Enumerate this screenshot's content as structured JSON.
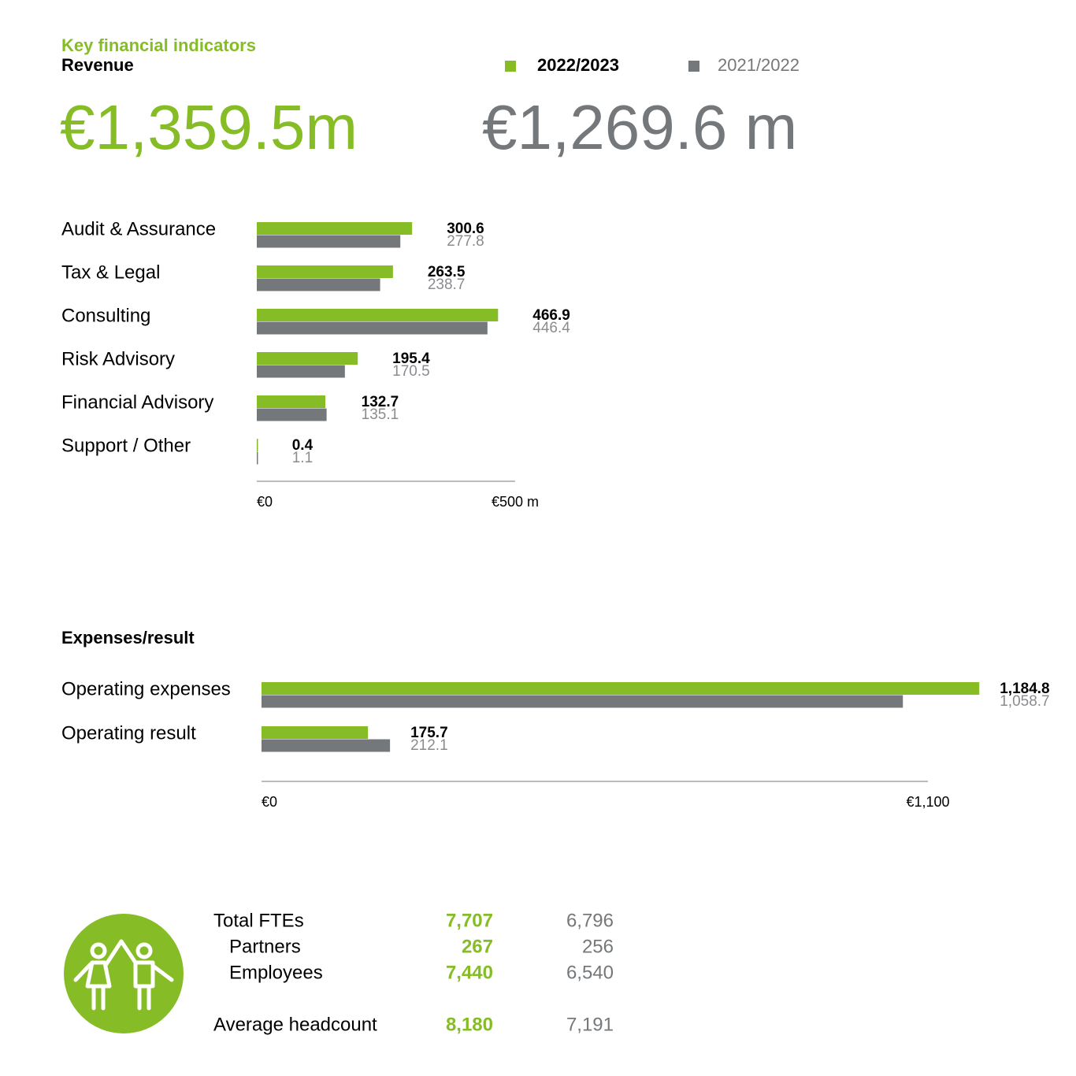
{
  "header": {
    "kicker": "Key financial indicators",
    "totals": [
      "€1,359.5m",
      "€1,269.6 m"
    ]
  },
  "chart_data": [
    {
      "type": "bar",
      "orientation": "horizontal",
      "title": "Revenue",
      "categories": [
        "Audit & Assurance",
        "Tax & Legal",
        "Consulting",
        "Risk Advisory",
        "Financial Advisory",
        "Support / Other"
      ],
      "series": [
        {
          "name": "2022/2023",
          "color": "#86bc25",
          "values": [
            300.6,
            263.5,
            466.9,
            195.4,
            132.7,
            0.4
          ]
        },
        {
          "name": "2021/2022",
          "color": "#75787b",
          "values": [
            277.8,
            238.7,
            446.4,
            170.5,
            135.1,
            1.1
          ]
        }
      ],
      "xlim": [
        0,
        500
      ],
      "xticks": [
        {
          "value": 0,
          "label": "€0"
        },
        {
          "value": 500,
          "label": "€500 m"
        }
      ]
    },
    {
      "type": "bar",
      "orientation": "horizontal",
      "title": "Expenses/result",
      "categories": [
        "Operating expenses",
        "Operating result"
      ],
      "series": [
        {
          "name": "2022/2023",
          "color": "#86bc25",
          "values": [
            1184.8,
            175.7
          ],
          "value_labels": [
            "1,184.8",
            "175.7"
          ]
        },
        {
          "name": "2021/2022",
          "color": "#75787b",
          "values": [
            1058.7,
            212.1
          ],
          "value_labels": [
            "1,058.7",
            "212.1"
          ]
        }
      ],
      "xlim": [
        0,
        1100
      ],
      "xticks": [
        {
          "value": 0,
          "label": "€0"
        },
        {
          "value": 1100,
          "label": "€1,100"
        }
      ]
    }
  ],
  "headcount": {
    "rows": [
      [
        "Total FTEs",
        "7,707",
        "6,796"
      ],
      [
        "Partners",
        "267",
        "256"
      ],
      [
        "Employees",
        "7,440",
        "6,540"
      ],
      [
        "Average headcount",
        "8,180",
        "7,191"
      ]
    ]
  }
}
